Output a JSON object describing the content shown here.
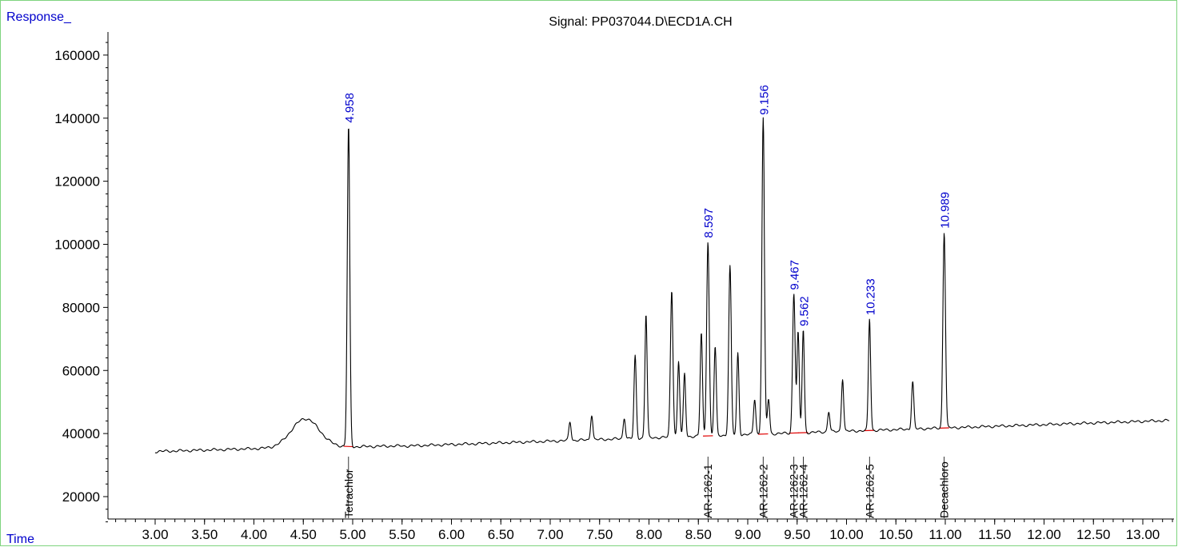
{
  "header": {
    "y_axis_title": "Response_",
    "signal_title": "Signal: PP037044.D\\ECD1A.CH",
    "x_axis_title": "Time"
  },
  "chart_data": {
    "type": "line",
    "title": "Signal: PP037044.D\\ECD1A.CH",
    "xlabel": "Time",
    "ylabel": "Response_",
    "xlim": [
      2.0,
      13.3
    ],
    "ylim": [
      12000,
      165000
    ],
    "x_ticks": [
      "3.00",
      "3.50",
      "4.00",
      "4.50",
      "5.00",
      "5.50",
      "6.00",
      "6.50",
      "7.00",
      "7.50",
      "8.00",
      "8.50",
      "9.00",
      "9.50",
      "10.00",
      "10.50",
      "11.00",
      "11.50",
      "12.00",
      "12.50",
      "13.00"
    ],
    "y_ticks": [
      "20000",
      "40000",
      "60000",
      "80000",
      "100000",
      "120000",
      "140000",
      "160000"
    ],
    "peaks": [
      {
        "time": "4.958",
        "response": 137500
      },
      {
        "time": "8.597",
        "response": 101000
      },
      {
        "time": "9.156",
        "response": 140000
      },
      {
        "time": "9.467",
        "response": 84500
      },
      {
        "time": "9.562",
        "response": 73000
      },
      {
        "time": "10.233",
        "response": 76500
      },
      {
        "time": "10.989",
        "response": 104000
      }
    ],
    "compounds": [
      {
        "name": "Tetrachlor",
        "time": 4.958
      },
      {
        "name": "AR-1262-1",
        "time": 8.597
      },
      {
        "name": "AR-1262-2",
        "time": 9.156
      },
      {
        "name": "AR-1262-3",
        "time": 9.467
      },
      {
        "name": "AR-1262-4",
        "time": 9.562
      },
      {
        "name": "AR-1262-5",
        "time": 10.233
      },
      {
        "name": "Decachloro",
        "time": 10.989
      }
    ],
    "minor_peaks": [
      {
        "time": 7.2,
        "response": 43800
      },
      {
        "time": 7.42,
        "response": 46000
      },
      {
        "time": 7.75,
        "response": 45000
      },
      {
        "time": 7.86,
        "response": 64500
      },
      {
        "time": 7.97,
        "response": 78000
      },
      {
        "time": 8.23,
        "response": 85500
      },
      {
        "time": 8.3,
        "response": 63000
      },
      {
        "time": 8.36,
        "response": 59000
      },
      {
        "time": 8.53,
        "response": 72000
      },
      {
        "time": 8.67,
        "response": 67500
      },
      {
        "time": 8.82,
        "response": 93000
      },
      {
        "time": 8.9,
        "response": 65500
      },
      {
        "time": 9.07,
        "response": 51000
      },
      {
        "time": 9.21,
        "response": 51000
      },
      {
        "time": 9.51,
        "response": 72000
      },
      {
        "time": 9.82,
        "response": 47000
      },
      {
        "time": 9.96,
        "response": 57500
      },
      {
        "time": 10.67,
        "response": 56500
      }
    ]
  }
}
